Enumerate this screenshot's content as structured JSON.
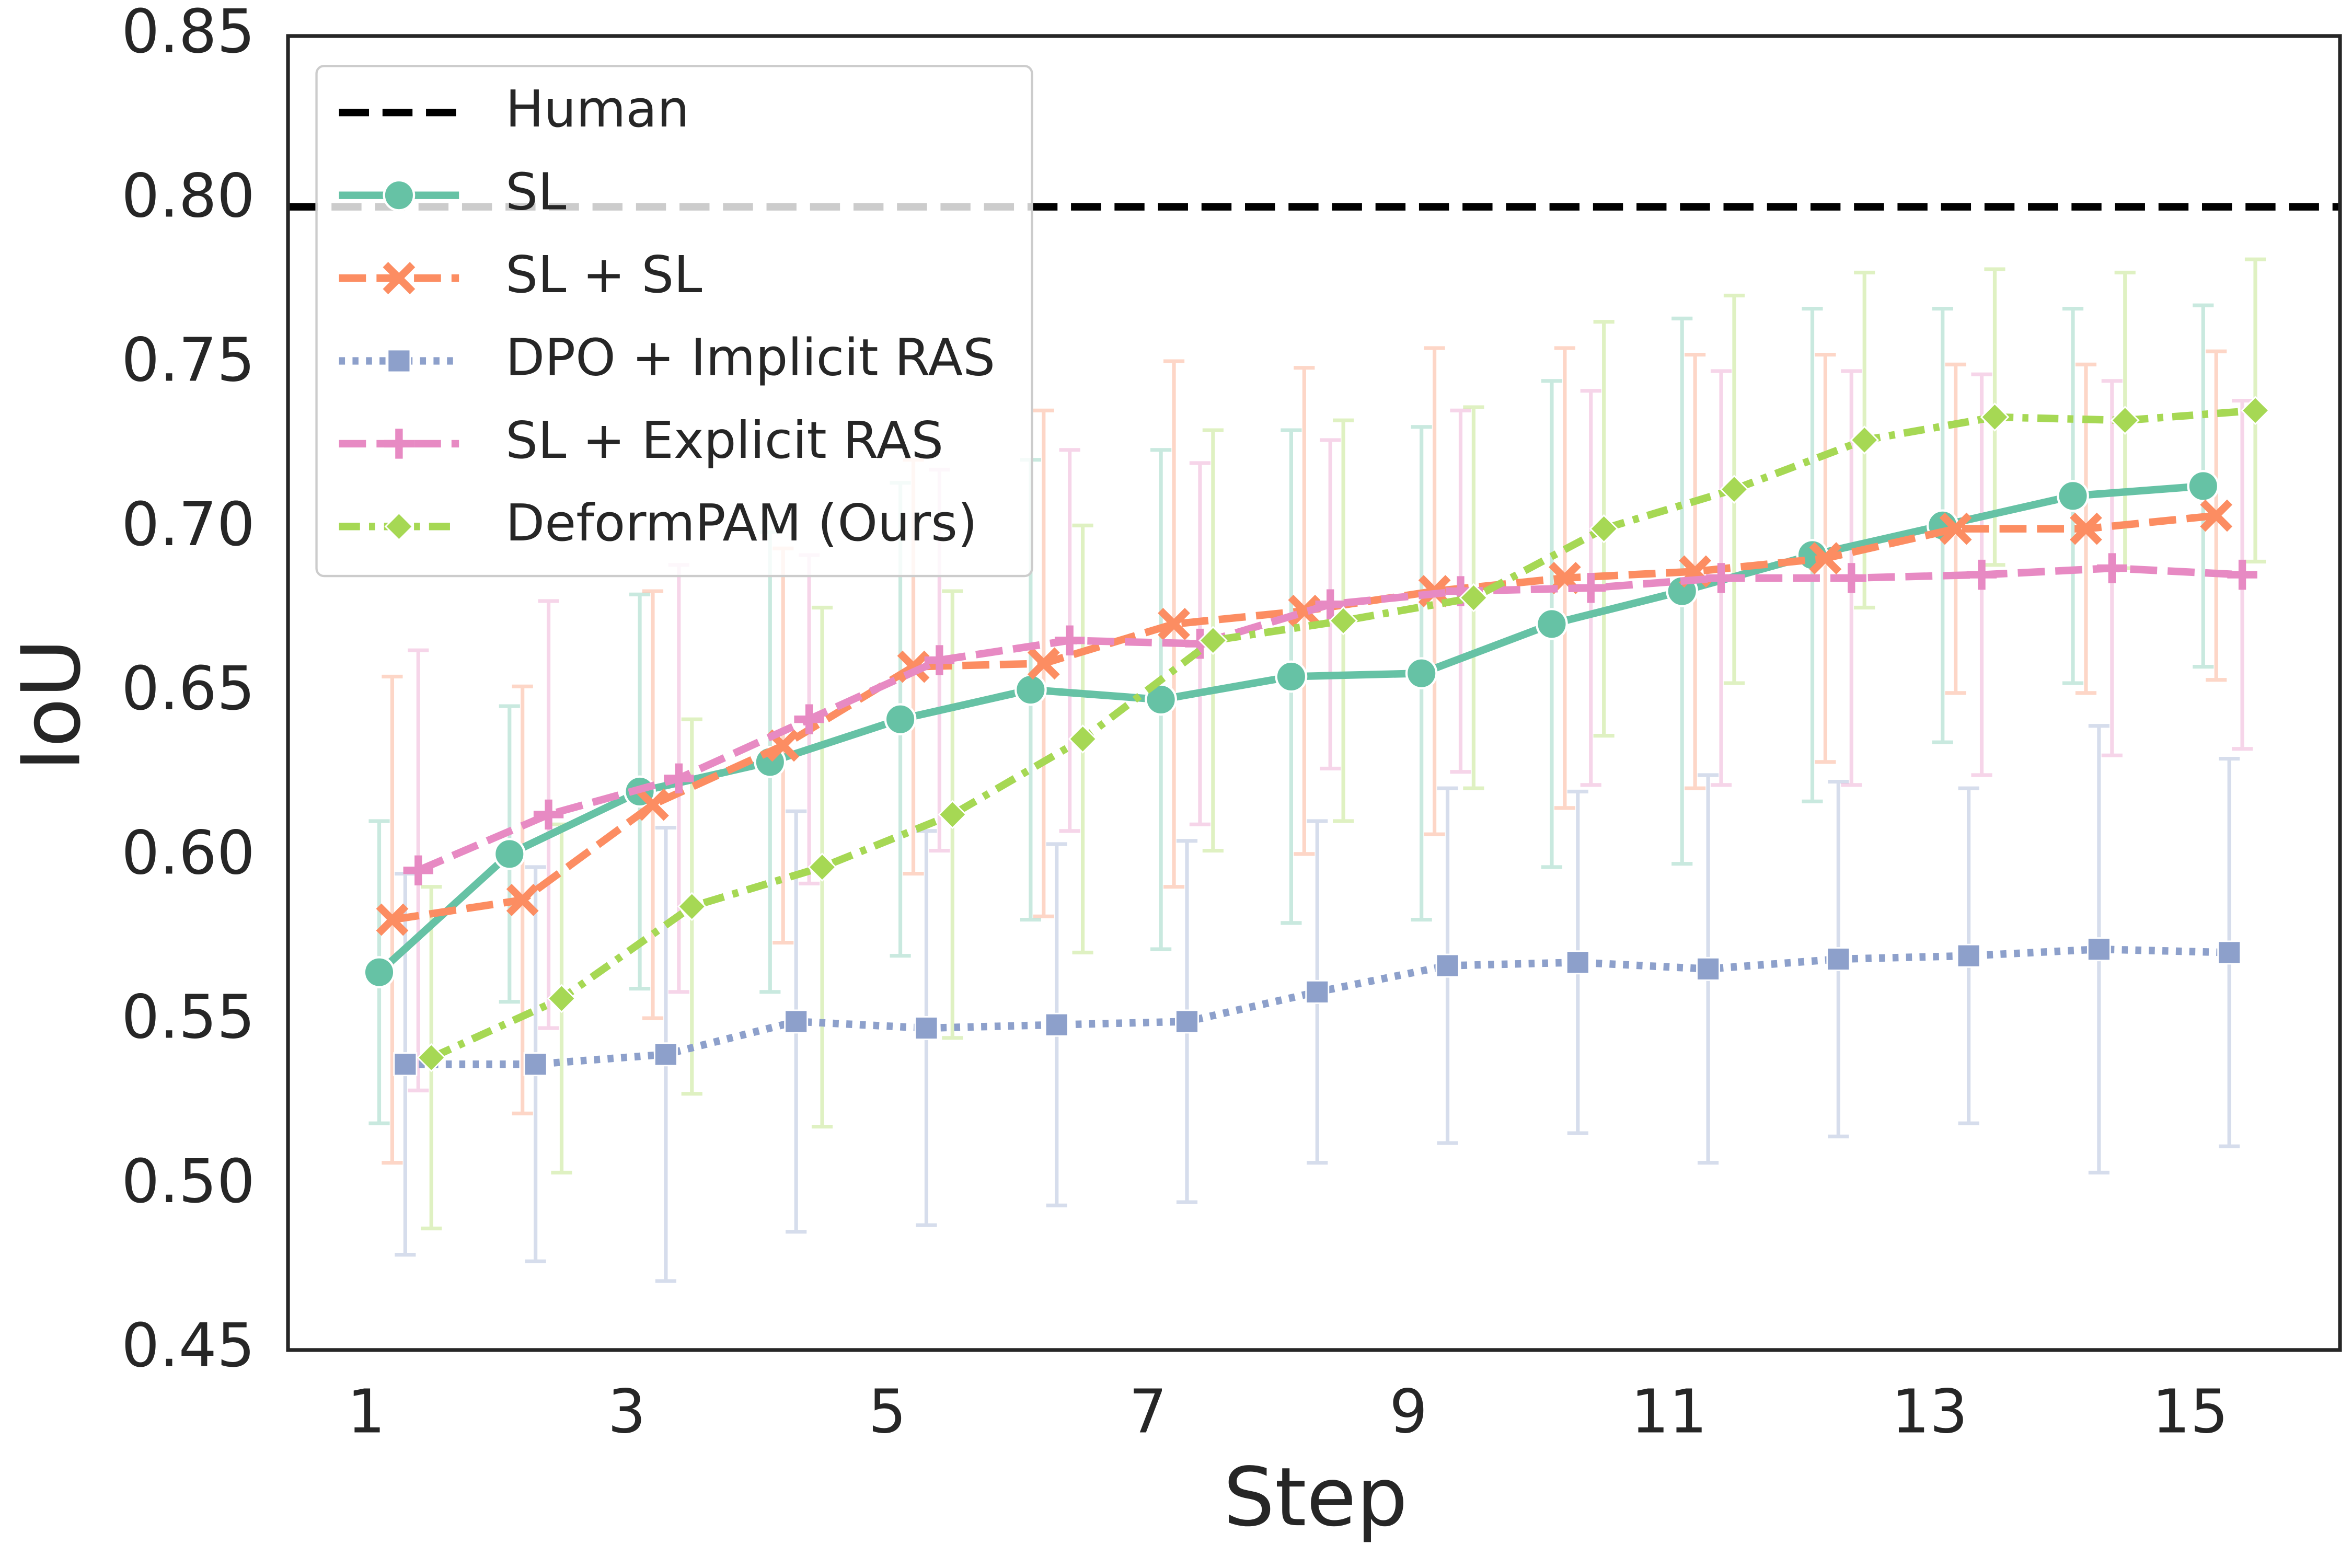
{
  "chart_data": {
    "type": "line",
    "xlabel": "Step",
    "ylabel": "IoU",
    "x": [
      1,
      2,
      3,
      4,
      5,
      6,
      7,
      8,
      9,
      10,
      11,
      12,
      13,
      14,
      15
    ],
    "xlim": [
      0.4,
      16.15
    ],
    "xticks": [
      1,
      3,
      5,
      7,
      9,
      11,
      13,
      15
    ],
    "ylim": [
      0.45,
      0.85
    ],
    "yticks": [
      0.45,
      {
        "value": 0.5,
        "label": "0.50"
      },
      0.55,
      {
        "value": 0.6,
        "label": "0.60"
      },
      0.65,
      {
        "value": 0.7,
        "label": "0.70"
      },
      0.75,
      {
        "value": 0.8,
        "label": "0.80"
      },
      0.85
    ],
    "grid": false,
    "legend": "upper left",
    "reference": {
      "name": "Human",
      "value": 0.798,
      "color": "#000000"
    },
    "series": [
      {
        "name": "SL",
        "color": "#66c2a5",
        "marker": "circle",
        "linestyle": "solid",
        "values": [
          0.565,
          0.601,
          0.62,
          0.629,
          0.642,
          0.651,
          0.648,
          0.655,
          0.656,
          0.671,
          0.681,
          0.692,
          0.701,
          0.71,
          0.713
        ],
        "errors": [
          0.046,
          0.045,
          0.06,
          0.07,
          0.072,
          0.07,
          0.076,
          0.075,
          0.075,
          0.074,
          0.083,
          0.075,
          0.066,
          0.057,
          0.055
        ]
      },
      {
        "name": "SL + SL",
        "color": "#fc8d62",
        "marker": "x",
        "linestyle": "dashed",
        "values": [
          0.581,
          0.587,
          0.616,
          0.634,
          0.658,
          0.659,
          0.671,
          0.675,
          0.681,
          0.685,
          0.687,
          0.691,
          0.7,
          0.7,
          0.704
        ],
        "errors": [
          0.074,
          0.065,
          0.065,
          0.06,
          0.063,
          0.077,
          0.08,
          0.074,
          0.074,
          0.07,
          0.066,
          0.062,
          0.05,
          0.05,
          0.05
        ]
      },
      {
        "name": "DPO + Implicit RAS",
        "color": "#8da0cb",
        "marker": "square",
        "linestyle": "dotted",
        "values": [
          0.537,
          0.537,
          0.54,
          0.55,
          0.548,
          0.549,
          0.55,
          0.559,
          0.567,
          0.568,
          0.566,
          0.569,
          0.57,
          0.572,
          0.571
        ],
        "errors": [
          0.058,
          0.06,
          0.069,
          0.064,
          0.06,
          0.055,
          0.055,
          0.052,
          0.054,
          0.052,
          0.059,
          0.054,
          0.051,
          0.068,
          0.059
        ]
      },
      {
        "name": "SL + Explicit RAS",
        "color": "#e78ac3",
        "marker": "plus",
        "linestyle": "dashed",
        "values": [
          0.596,
          0.613,
          0.624,
          0.642,
          0.66,
          0.666,
          0.665,
          0.677,
          0.681,
          0.682,
          0.685,
          0.685,
          0.686,
          0.688,
          0.686
        ],
        "errors": [
          0.067,
          0.065,
          0.065,
          0.05,
          0.058,
          0.058,
          0.055,
          0.05,
          0.055,
          0.06,
          0.063,
          0.063,
          0.061,
          0.057,
          0.053
        ]
      },
      {
        "name": "DeformPAM (Ours)",
        "color": "#a6d854",
        "marker": "diamond",
        "linestyle": "dashdot",
        "values": [
          0.539,
          0.557,
          0.585,
          0.597,
          0.613,
          0.636,
          0.666,
          0.672,
          0.679,
          0.7,
          0.712,
          0.727,
          0.734,
          0.733,
          0.736
        ],
        "errors": [
          0.052,
          0.053,
          0.057,
          0.079,
          0.068,
          0.065,
          0.064,
          0.061,
          0.058,
          0.063,
          0.059,
          0.051,
          0.045,
          0.045,
          0.046
        ]
      }
    ]
  }
}
